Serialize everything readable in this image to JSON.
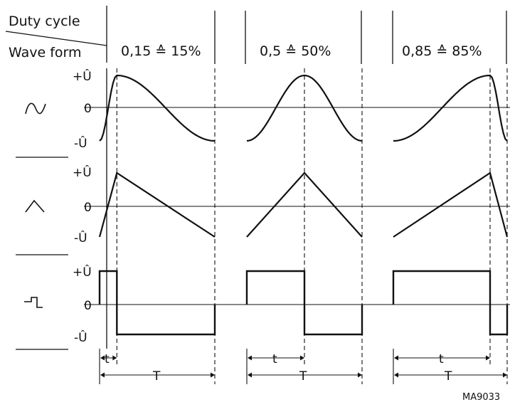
{
  "header": {
    "duty_cycle_label": "Duty cycle",
    "wave_form_label": "Wave form"
  },
  "columns": [
    {
      "label": "0,15 ≙ 15%",
      "duty": 0.15
    },
    {
      "label": "0,5 ≙ 50%",
      "duty": 0.5
    },
    {
      "label": "0,85 ≙ 85%",
      "duty": 0.85
    }
  ],
  "levels": {
    "plus": "+Û",
    "zero": "0",
    "minus": "-Û"
  },
  "rows": [
    {
      "waveform": "sine",
      "icon": "sine-wave-icon"
    },
    {
      "waveform": "triangle",
      "icon": "triangle-wave-icon"
    },
    {
      "waveform": "square",
      "icon": "square-wave-icon"
    }
  ],
  "timing": {
    "pulse_label": "t",
    "period_label": "T"
  },
  "reference": "MA9033",
  "colors": {
    "ink": "#111111",
    "background": "#ffffff"
  }
}
